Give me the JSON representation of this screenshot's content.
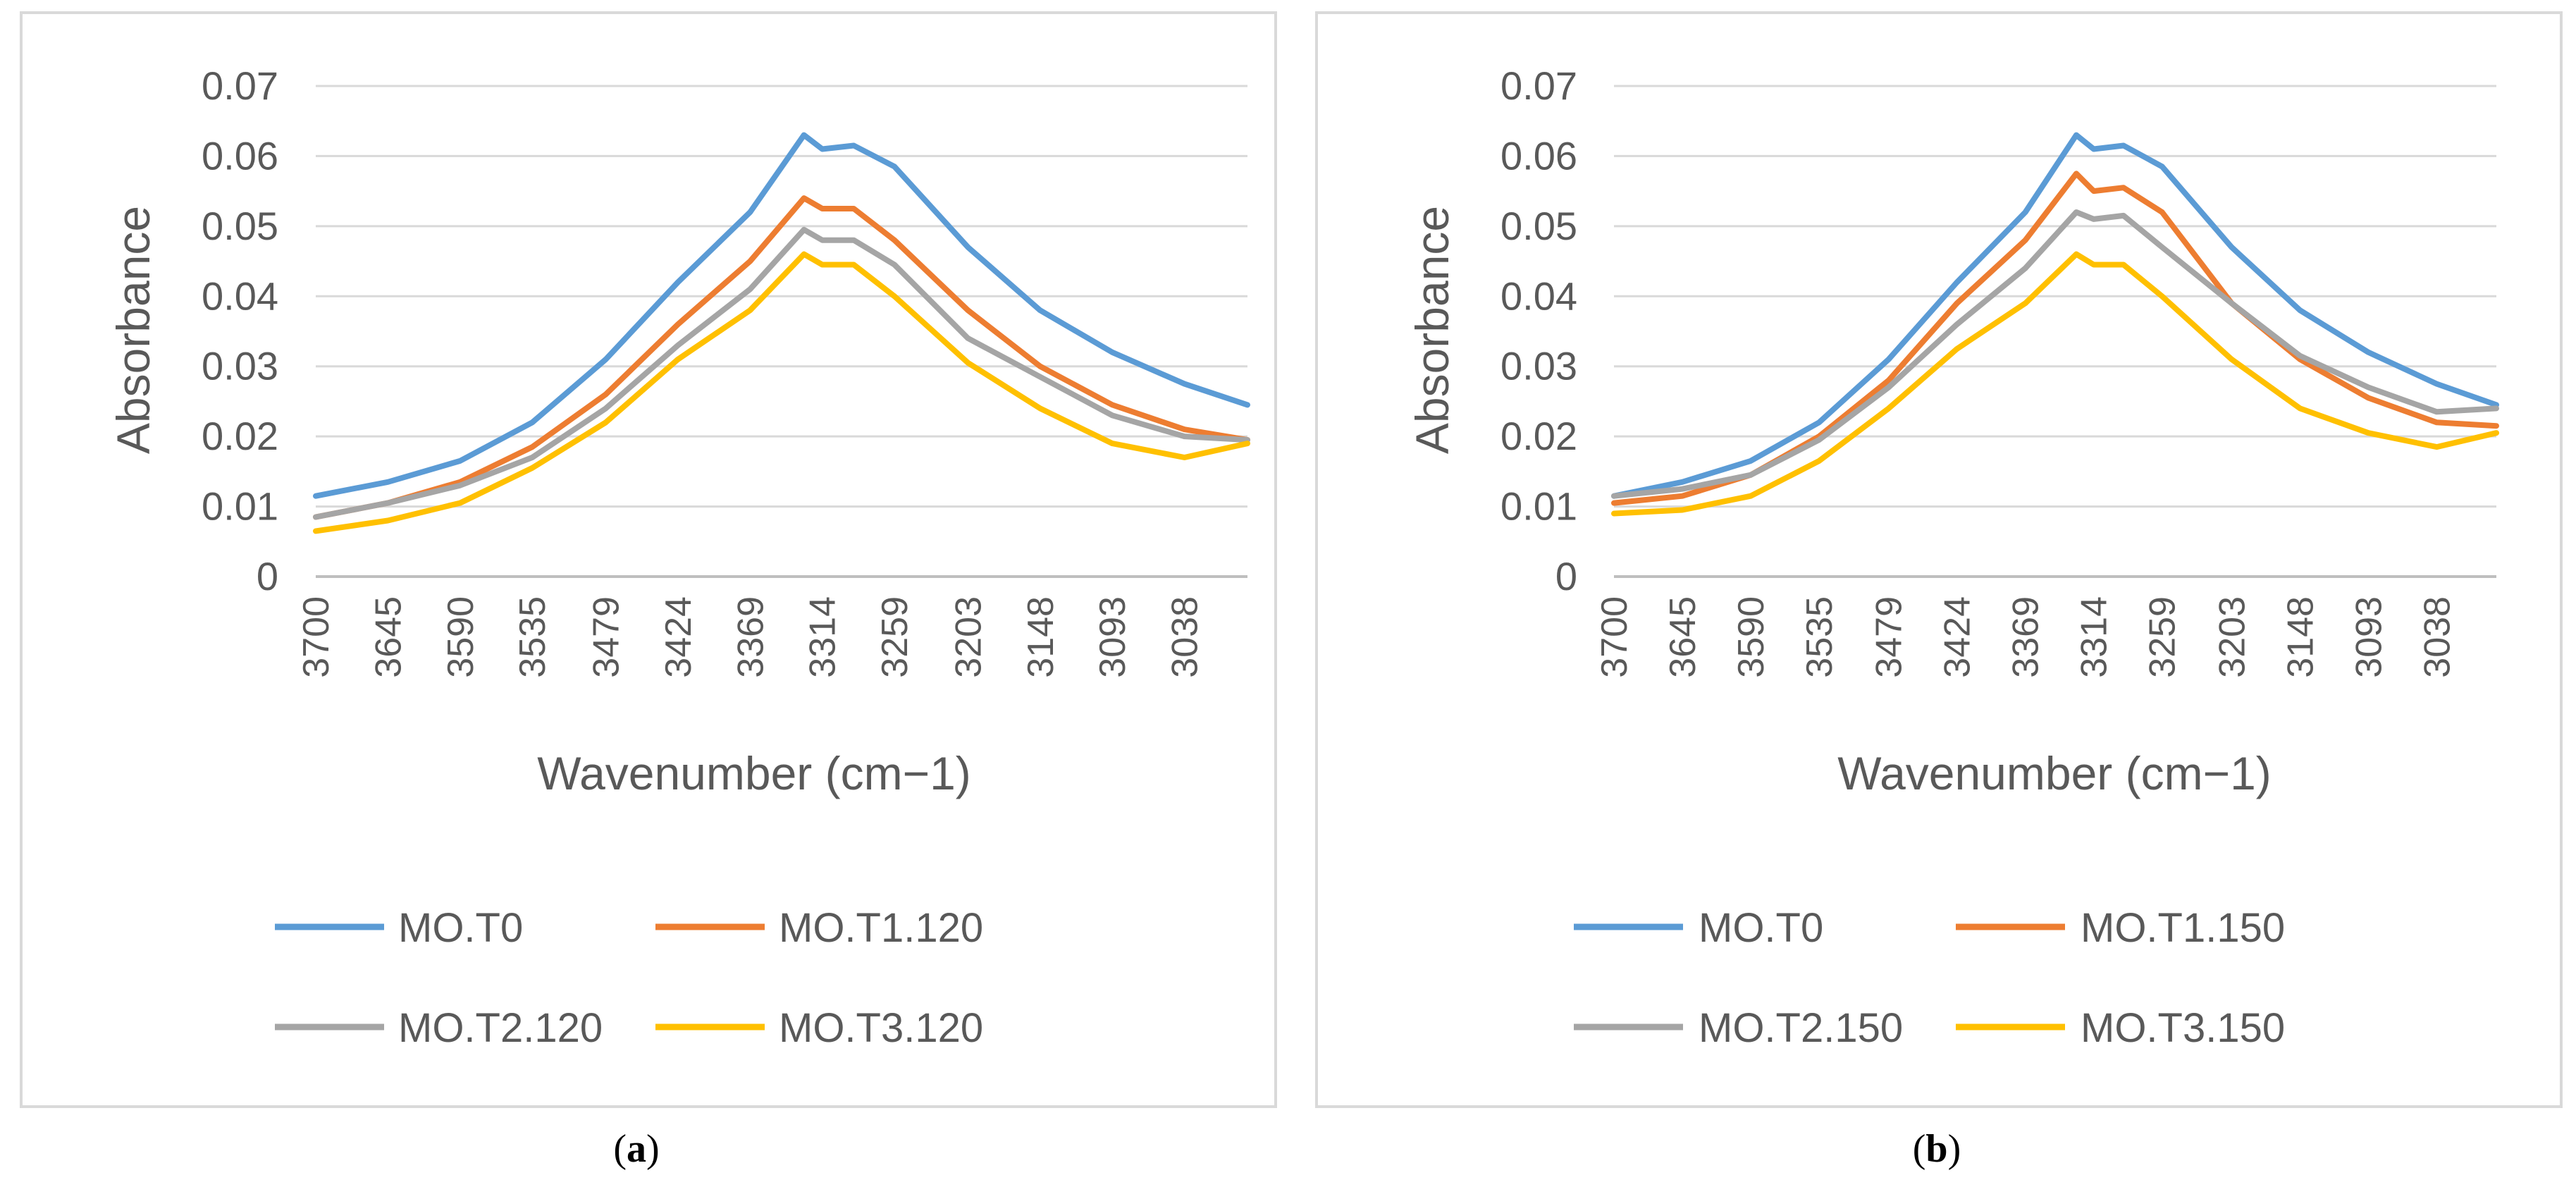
{
  "chart_data": [
    {
      "type": "line",
      "panel_label": "a",
      "xlabel": "Wavenumber (cm−1)",
      "ylabel": "Absorbance",
      "xlim": [
        3700,
        2990
      ],
      "ylim": [
        0,
        0.07
      ],
      "y_ticks": [
        "0",
        "0.01",
        "0.02",
        "0.03",
        "0.04",
        "0.05",
        "0.06",
        "0.07"
      ],
      "x_ticks": [
        3700,
        3645,
        3590,
        3535,
        3479,
        3424,
        3369,
        3314,
        3259,
        3203,
        3148,
        3093,
        3038
      ],
      "grid": "horizontal",
      "legend_position": "bottom",
      "series": [
        {
          "name": "MO.T0",
          "color": "#5B9BD5",
          "x": [
            3700,
            3645,
            3590,
            3535,
            3479,
            3424,
            3369,
            3328,
            3314,
            3290,
            3259,
            3203,
            3148,
            3093,
            3038,
            2990
          ],
          "values": [
            0.0115,
            0.0135,
            0.0165,
            0.022,
            0.031,
            0.042,
            0.052,
            0.063,
            0.061,
            0.0615,
            0.0585,
            0.047,
            0.038,
            0.032,
            0.0275,
            0.0245
          ]
        },
        {
          "name": "MO.T1.120",
          "color": "#ED7D31",
          "x": [
            3700,
            3645,
            3590,
            3535,
            3479,
            3424,
            3369,
            3328,
            3314,
            3290,
            3259,
            3203,
            3148,
            3093,
            3038,
            2990
          ],
          "values": [
            0.0085,
            0.0105,
            0.0135,
            0.0185,
            0.026,
            0.036,
            0.045,
            0.054,
            0.0525,
            0.0525,
            0.048,
            0.038,
            0.03,
            0.0245,
            0.021,
            0.0195
          ]
        },
        {
          "name": "MO.T2.120",
          "color": "#A5A5A5",
          "x": [
            3700,
            3645,
            3590,
            3535,
            3479,
            3424,
            3369,
            3328,
            3314,
            3290,
            3259,
            3203,
            3148,
            3093,
            3038,
            2990
          ],
          "values": [
            0.0085,
            0.0105,
            0.013,
            0.017,
            0.024,
            0.033,
            0.041,
            0.0495,
            0.048,
            0.048,
            0.0445,
            0.034,
            0.0285,
            0.023,
            0.02,
            0.0195
          ]
        },
        {
          "name": "MO.T3.120",
          "color": "#FFC000",
          "x": [
            3700,
            3645,
            3590,
            3535,
            3479,
            3424,
            3369,
            3328,
            3314,
            3290,
            3259,
            3203,
            3148,
            3093,
            3038,
            2990
          ],
          "values": [
            0.0065,
            0.008,
            0.0105,
            0.0155,
            0.022,
            0.031,
            0.038,
            0.046,
            0.0445,
            0.0445,
            0.04,
            0.0305,
            0.024,
            0.019,
            0.017,
            0.019
          ]
        }
      ]
    },
    {
      "type": "line",
      "panel_label": "b",
      "xlabel": "Wavenumber (cm−1)",
      "ylabel": "Absorbance",
      "xlim": [
        3700,
        2990
      ],
      "ylim": [
        0,
        0.07
      ],
      "y_ticks": [
        "0",
        "0.01",
        "0.02",
        "0.03",
        "0.04",
        "0.05",
        "0.06",
        "0.07"
      ],
      "x_ticks": [
        3700,
        3645,
        3590,
        3535,
        3479,
        3424,
        3369,
        3314,
        3259,
        3203,
        3148,
        3093,
        3038
      ],
      "grid": "horizontal",
      "legend_position": "bottom",
      "series": [
        {
          "name": "MO.T0",
          "color": "#5B9BD5",
          "x": [
            3700,
            3645,
            3590,
            3535,
            3479,
            3424,
            3369,
            3328,
            3314,
            3290,
            3259,
            3203,
            3148,
            3093,
            3038,
            2990
          ],
          "values": [
            0.0115,
            0.0135,
            0.0165,
            0.022,
            0.031,
            0.042,
            0.052,
            0.063,
            0.061,
            0.0615,
            0.0585,
            0.047,
            0.038,
            0.032,
            0.0275,
            0.0245
          ]
        },
        {
          "name": "MO.T1.150",
          "color": "#ED7D31",
          "x": [
            3700,
            3645,
            3590,
            3535,
            3479,
            3424,
            3369,
            3328,
            3314,
            3290,
            3259,
            3203,
            3148,
            3093,
            3038,
            2990
          ],
          "values": [
            0.0105,
            0.0115,
            0.0145,
            0.02,
            0.028,
            0.039,
            0.048,
            0.0575,
            0.055,
            0.0555,
            0.052,
            0.039,
            0.031,
            0.0255,
            0.022,
            0.0215
          ]
        },
        {
          "name": "MO.T2.150",
          "color": "#A5A5A5",
          "x": [
            3700,
            3645,
            3590,
            3535,
            3479,
            3424,
            3369,
            3328,
            3314,
            3290,
            3259,
            3203,
            3148,
            3093,
            3038,
            2990
          ],
          "values": [
            0.0115,
            0.0125,
            0.0145,
            0.0195,
            0.027,
            0.036,
            0.044,
            0.052,
            0.051,
            0.0515,
            0.047,
            0.039,
            0.0315,
            0.027,
            0.0235,
            0.024
          ]
        },
        {
          "name": "MO.T3.150",
          "color": "#FFC000",
          "x": [
            3700,
            3645,
            3590,
            3535,
            3479,
            3424,
            3369,
            3328,
            3314,
            3290,
            3259,
            3203,
            3148,
            3093,
            3038,
            2990
          ],
          "values": [
            0.009,
            0.0095,
            0.0115,
            0.0165,
            0.024,
            0.0325,
            0.039,
            0.046,
            0.0445,
            0.0445,
            0.04,
            0.031,
            0.024,
            0.0205,
            0.0185,
            0.0205
          ]
        }
      ]
    }
  ]
}
